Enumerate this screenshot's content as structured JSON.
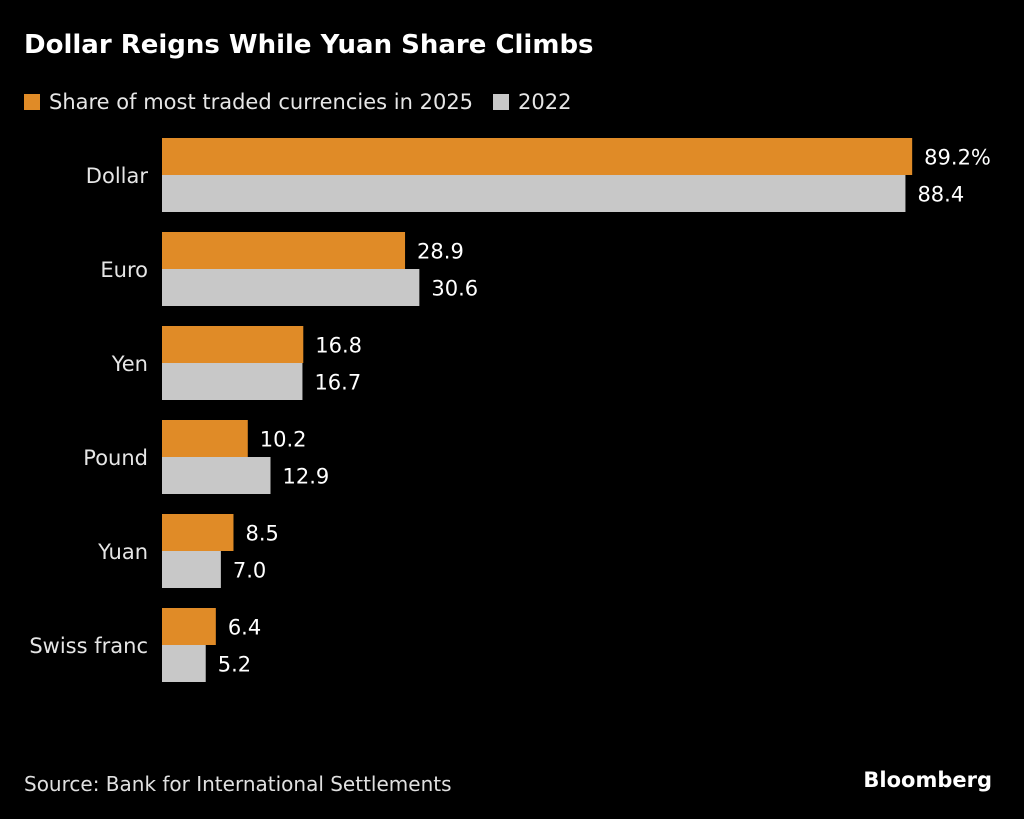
{
  "colors": {
    "series_2025": "#e08b27",
    "series_2022": "#c8c8c8"
  },
  "brand": "Bloomberg",
  "source": "Source: Bank for International Settlements",
  "chart_data": {
    "type": "bar",
    "orientation": "horizontal",
    "title": "Dollar Reigns While Yuan Share Climbs",
    "categories": [
      "Dollar",
      "Euro",
      "Yen",
      "Pound",
      "Yuan",
      "Swiss franc"
    ],
    "series": [
      {
        "name": "Share of most traded currencies in 2025",
        "values": [
          89.2,
          28.9,
          16.8,
          10.2,
          8.5,
          6.4
        ]
      },
      {
        "name": "2022",
        "values": [
          88.4,
          30.6,
          16.7,
          12.9,
          7.0,
          5.2
        ]
      }
    ],
    "data_labels": [
      [
        "89.2%",
        "28.9",
        "16.8",
        "10.2",
        "8.5",
        "6.4"
      ],
      [
        "88.4",
        "30.6",
        "16.7",
        "12.9",
        "7.0",
        "5.2"
      ]
    ],
    "xlim": [
      0,
      90
    ],
    "grid": false,
    "legend_position": "top-left"
  }
}
